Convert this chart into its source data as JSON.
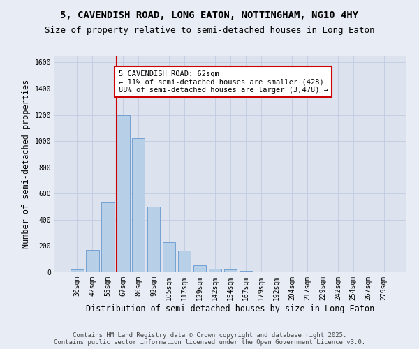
{
  "title_line1": "5, CAVENDISH ROAD, LONG EATON, NOTTINGHAM, NG10 4HY",
  "title_line2": "Size of property relative to semi-detached houses in Long Eaton",
  "xlabel": "Distribution of semi-detached houses by size in Long Eaton",
  "ylabel": "Number of semi-detached properties",
  "bin_labels": [
    "30sqm",
    "42sqm",
    "55sqm",
    "67sqm",
    "80sqm",
    "92sqm",
    "105sqm",
    "117sqm",
    "129sqm",
    "142sqm",
    "154sqm",
    "167sqm",
    "179sqm",
    "192sqm",
    "204sqm",
    "217sqm",
    "229sqm",
    "242sqm",
    "254sqm",
    "267sqm",
    "279sqm"
  ],
  "bar_values": [
    20,
    170,
    530,
    1200,
    1020,
    500,
    230,
    165,
    55,
    25,
    20,
    10,
    0,
    5,
    5,
    2,
    1,
    0,
    0,
    0,
    0
  ],
  "bar_color": "#b8cfe8",
  "bar_edge_color": "#6699cc",
  "bar_width": 0.85,
  "vline_color": "#cc0000",
  "annotation_text": "5 CAVENDISH ROAD: 62sqm\n← 11% of semi-detached houses are smaller (428)\n88% of semi-detached houses are larger (3,478) →",
  "annotation_box_color": "#cc0000",
  "ylim": [
    0,
    1650
  ],
  "yticks": [
    0,
    200,
    400,
    600,
    800,
    1000,
    1200,
    1400,
    1600
  ],
  "grid_color": "#c0cce0",
  "bg_color": "#e8edf5",
  "plot_bg_color": "#dce3ef",
  "footer_text": "Contains HM Land Registry data © Crown copyright and database right 2025.\nContains public sector information licensed under the Open Government Licence v3.0.",
  "title_fontsize": 10,
  "subtitle_fontsize": 9,
  "axis_label_fontsize": 8.5,
  "tick_fontsize": 7,
  "footer_fontsize": 6.5,
  "vline_bin_index": 2.58
}
